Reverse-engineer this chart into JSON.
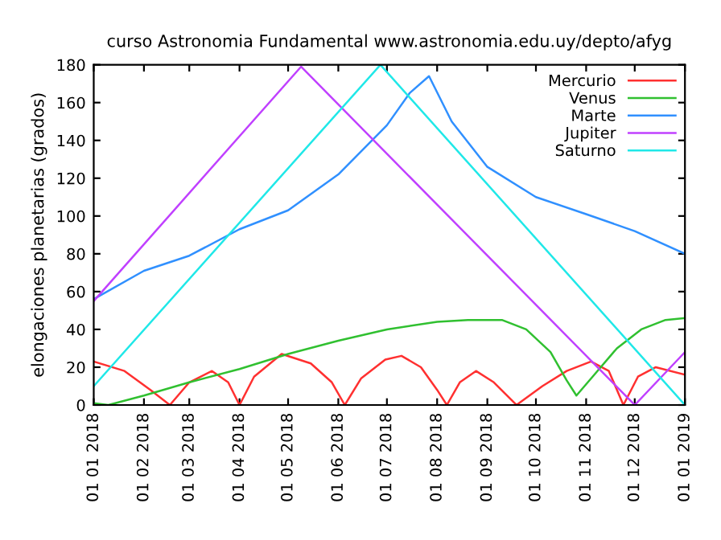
{
  "chart_data": {
    "type": "line",
    "title": "curso Astronomia Fundamental www.astronomia.edu.uy/depto/afyg",
    "ylabel": "elongaciones planetarias (grados)",
    "xlim": [
      "2018-01-01",
      "2019-01-01"
    ],
    "xticks": [
      {
        "value": "2018-01-01",
        "label": "01 01 2018"
      },
      {
        "value": "2018-02-01",
        "label": "01 02 2018"
      },
      {
        "value": "2018-03-01",
        "label": "01 03 2018"
      },
      {
        "value": "2018-04-01",
        "label": "01 04 2018"
      },
      {
        "value": "2018-05-01",
        "label": "01 05 2018"
      },
      {
        "value": "2018-06-01",
        "label": "01 06 2018"
      },
      {
        "value": "2018-07-01",
        "label": "01 07 2018"
      },
      {
        "value": "2018-08-01",
        "label": "01 08 2018"
      },
      {
        "value": "2018-09-01",
        "label": "01 09 2018"
      },
      {
        "value": "2018-10-01",
        "label": "01 10 2018"
      },
      {
        "value": "2018-11-01",
        "label": "01 11 2018"
      },
      {
        "value": "2018-12-01",
        "label": "01 12 2018"
      },
      {
        "value": "2019-01-01",
        "label": "01 01 2019"
      }
    ],
    "ylim": [
      0,
      180
    ],
    "yticks": [
      0,
      20,
      40,
      60,
      80,
      100,
      120,
      140,
      160,
      180
    ],
    "grid": false,
    "legend": "top right",
    "marker": "none",
    "line_style": "solid",
    "series": [
      {
        "name": "Mercurio",
        "color": "#ff3030",
        "x": [
          "2018-01-01",
          "2018-01-20",
          "2018-02-05",
          "2018-02-17",
          "2018-03-01",
          "2018-03-15",
          "2018-03-25",
          "2018-04-01",
          "2018-04-10",
          "2018-04-27",
          "2018-05-15",
          "2018-05-28",
          "2018-06-05",
          "2018-06-15",
          "2018-06-30",
          "2018-07-10",
          "2018-07-22",
          "2018-08-01",
          "2018-08-07",
          "2018-08-15",
          "2018-08-25",
          "2018-09-05",
          "2018-09-19",
          "2018-10-05",
          "2018-10-20",
          "2018-11-04",
          "2018-11-15",
          "2018-11-24",
          "2018-12-03",
          "2018-12-14",
          "2019-01-01"
        ],
        "values": [
          23,
          18,
          8,
          0,
          12,
          18,
          12,
          0,
          15,
          27,
          22,
          12,
          0,
          14,
          24,
          26,
          20,
          8,
          0,
          12,
          18,
          12,
          0,
          10,
          18,
          23,
          18,
          0,
          15,
          20,
          16
        ]
      },
      {
        "name": "Venus",
        "color": "#30c030",
        "x": [
          "2018-01-01",
          "2018-01-10",
          "2018-02-01",
          "2018-03-01",
          "2018-04-01",
          "2018-05-01",
          "2018-06-01",
          "2018-07-01",
          "2018-08-01",
          "2018-08-20",
          "2018-09-10",
          "2018-09-25",
          "2018-10-10",
          "2018-10-20",
          "2018-10-26",
          "2018-11-05",
          "2018-11-20",
          "2018-12-05",
          "2018-12-20",
          "2019-01-01"
        ],
        "values": [
          1,
          0,
          5,
          12,
          19,
          27,
          34,
          40,
          44,
          45,
          45,
          40,
          28,
          13,
          5,
          15,
          30,
          40,
          45,
          46
        ]
      },
      {
        "name": "Marte",
        "color": "#3090ff",
        "x": [
          "2018-01-01",
          "2018-02-01",
          "2018-03-01",
          "2018-04-01",
          "2018-05-01",
          "2018-06-01",
          "2018-07-01",
          "2018-07-15",
          "2018-07-27",
          "2018-08-10",
          "2018-09-01",
          "2018-10-01",
          "2018-11-01",
          "2018-12-01",
          "2019-01-01"
        ],
        "values": [
          56,
          71,
          79,
          93,
          103,
          122,
          148,
          165,
          174,
          150,
          126,
          110,
          101,
          92,
          80
        ]
      },
      {
        "name": "Jupiter",
        "color": "#c040ff",
        "x": [
          "2018-01-01",
          "2018-05-09",
          "2018-12-01",
          "2019-01-01"
        ],
        "values": [
          55,
          179,
          0,
          28
        ]
      },
      {
        "name": "Saturno",
        "color": "#20e8e8",
        "x": [
          "2018-01-01",
          "2018-06-27",
          "2019-01-01"
        ],
        "values": [
          10,
          180,
          0
        ]
      }
    ]
  }
}
